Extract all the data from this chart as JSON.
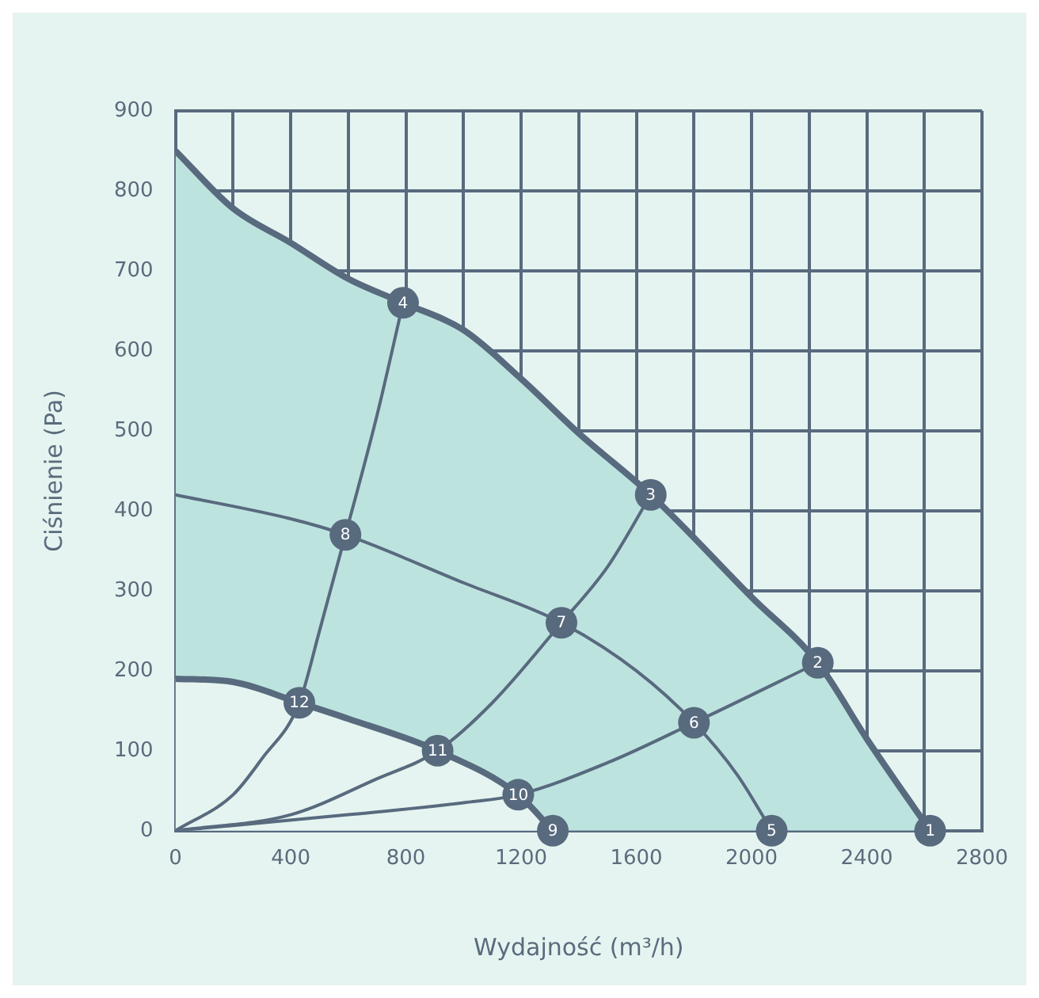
{
  "chart_data": {
    "type": "line",
    "xlabel": "Wydajność (m³/h)",
    "ylabel": "Ciśnienie (Pa)",
    "xlim": [
      0,
      2800
    ],
    "xticks": [
      0,
      {
        "value": 200,
        "label": null
      },
      400,
      {
        "value": 600,
        "label": null
      },
      800,
      {
        "value": 1000,
        "label": null
      },
      1200,
      {
        "value": 1400,
        "label": null
      },
      1600,
      {
        "value": 1800,
        "label": null
      },
      2000,
      {
        "value": 2200,
        "label": null
      },
      2400,
      {
        "value": 2600,
        "label": null
      },
      2800
    ],
    "ylim": [
      0,
      900
    ],
    "yticks": [
      0,
      100,
      200,
      300,
      400,
      500,
      600,
      700,
      800,
      900
    ],
    "grid": true,
    "legend": false,
    "line_style": "solid",
    "series": [
      {
        "type": "area",
        "color": "#bde3df",
        "x": [
          0,
          200,
          400,
          600,
          790,
          1000,
          1200,
          1400,
          1650,
          2000,
          2230,
          2400,
          2620
        ],
        "values": [
          850,
          778,
          735,
          690,
          660,
          626,
          565,
          497,
          420,
          292,
          210,
          115,
          0
        ]
      },
      {
        "type": "area",
        "color": "#e6f4f1",
        "x": [
          0,
          200,
          430,
          600,
          910,
          1190,
          1310
        ],
        "values": [
          190,
          186,
          160,
          140,
          100,
          45,
          0
        ]
      },
      {
        "color": "#586a7e",
        "x": [
          0,
          400,
          590,
          1000,
          1340,
          1600,
          1800,
          1950,
          2070
        ],
        "values": [
          420,
          390,
          370,
          310,
          260,
          200,
          135,
          70,
          0
        ]
      },
      {
        "color": "#586a7e",
        "x": [
          0,
          200,
          300,
          430,
          500,
          590,
          700,
          790
        ],
        "values": [
          0,
          45,
          90,
          160,
          250,
          370,
          520,
          660
        ]
      },
      {
        "color": "#586a7e",
        "x": [
          0,
          400,
          700,
          910,
          1100,
          1340,
          1500,
          1650
        ],
        "values": [
          0,
          20,
          65,
          100,
          160,
          260,
          330,
          420
        ]
      },
      {
        "color": "#586a7e",
        "x": [
          0,
          600,
          1000,
          1190,
          1500,
          1800,
          2230
        ],
        "values": [
          0,
          20,
          35,
          45,
          85,
          135,
          210
        ]
      }
    ],
    "annotations": [
      {
        "text": "1",
        "x": 2620,
        "y": 0
      },
      {
        "text": "2",
        "x": 2230,
        "y": 210
      },
      {
        "text": "3",
        "x": 1650,
        "y": 420
      },
      {
        "text": "4",
        "x": 790,
        "y": 660
      },
      {
        "text": "5",
        "x": 2070,
        "y": 0
      },
      {
        "text": "6",
        "x": 1800,
        "y": 135
      },
      {
        "text": "7",
        "x": 1340,
        "y": 260
      },
      {
        "text": "8",
        "x": 590,
        "y": 370
      },
      {
        "text": "9",
        "x": 1310,
        "y": 0
      },
      {
        "text": "10",
        "x": 1190,
        "y": 45
      },
      {
        "text": "11",
        "x": 910,
        "y": 100
      },
      {
        "text": "12",
        "x": 430,
        "y": 160
      }
    ]
  }
}
